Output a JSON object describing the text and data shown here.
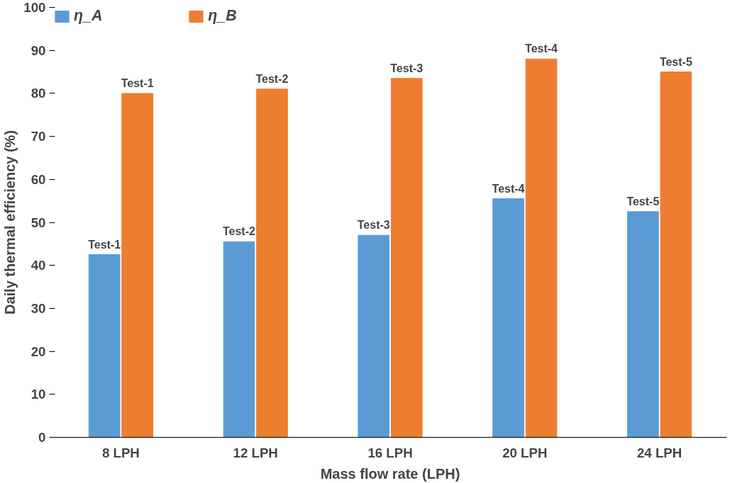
{
  "chart_data": {
    "type": "bar",
    "xlabel": "Mass flow rate (LPH)",
    "ylabel": "Daily thermal efficiency (%)",
    "categories": [
      "8 LPH",
      "12 LPH",
      "16 LPH",
      "20 LPH",
      "24 LPH"
    ],
    "series": [
      {
        "name": "η_A",
        "color": "#5b9bd5",
        "values": [
          42.5,
          45.5,
          47,
          55.5,
          52.5
        ],
        "value_labels": [
          "Test-1",
          "Test-2",
          "Test-3",
          "Test-4",
          "Test-5"
        ]
      },
      {
        "name": "η_B",
        "color": "#ed7d31",
        "values": [
          80,
          81,
          83.5,
          88,
          85
        ],
        "value_labels": [
          "Test-1",
          "Test-2",
          "Test-3",
          "Test-4",
          "Test-5"
        ]
      }
    ],
    "ylim": [
      0,
      100
    ],
    "yticks": [
      0,
      10,
      20,
      30,
      40,
      50,
      60,
      70,
      80,
      90,
      100
    ],
    "grid": false,
    "legend": "top left"
  }
}
